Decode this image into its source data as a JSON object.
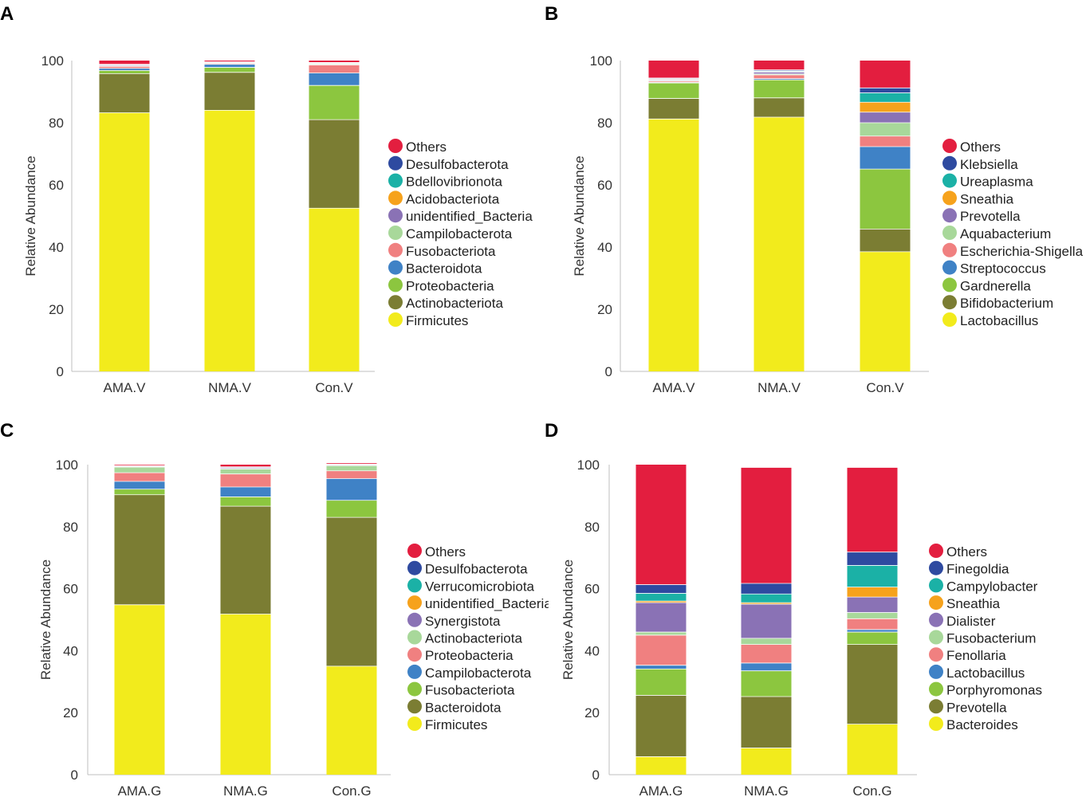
{
  "colors": {
    "others": "#e31e3f",
    "blue_dark": "#2e4aa0",
    "teal": "#1bb1a6",
    "orange": "#f6a21c",
    "purple": "#8a72b5",
    "light_green": "#a8d89a",
    "pink": "#f08080",
    "blue": "#3f82c6",
    "green": "#8cc63f",
    "olive": "#7b7d33",
    "yellow": "#f2eb1c",
    "axis": "#bfbfbf"
  },
  "chart_data": [
    {
      "panel": "A",
      "type": "bar",
      "stacked": true,
      "ylabel": "Relative Abundance",
      "ylim": [
        0,
        100
      ],
      "yticks": [
        "0",
        "20",
        "40",
        "60",
        "80",
        "100"
      ],
      "categories": [
        "AMA.V",
        "NMA.V",
        "Con.V"
      ],
      "series": [
        {
          "name": "Firmicutes",
          "color": "yellow",
          "values": [
            83.2,
            84.0,
            52.5
          ]
        },
        {
          "name": "Actinobacteriota",
          "color": "olive",
          "values": [
            12.6,
            12.2,
            28.5
          ]
        },
        {
          "name": "Proteobacteria",
          "color": "green",
          "values": [
            1.0,
            1.6,
            11.0
          ]
        },
        {
          "name": "Bacteroidota",
          "color": "blue",
          "values": [
            0.7,
            1.0,
            4.0
          ]
        },
        {
          "name": "Fusobacteriota",
          "color": "pink",
          "values": [
            0.6,
            0.3,
            2.6
          ]
        },
        {
          "name": "Campilobacterota",
          "color": "light_green",
          "values": [
            0.2,
            0.1,
            0.3
          ]
        },
        {
          "name": "unidentified_Bacteria",
          "color": "purple",
          "values": [
            0.3,
            0.2,
            0.2
          ]
        },
        {
          "name": "Acidobacteriota",
          "color": "orange",
          "values": [
            0.0,
            0.0,
            0.1
          ]
        },
        {
          "name": "Bdellovibrionota",
          "color": "teal",
          "values": [
            0.1,
            0.1,
            0.1
          ]
        },
        {
          "name": "Desulfobacterota",
          "color": "blue_dark",
          "values": [
            0.1,
            0.1,
            0.1
          ]
        },
        {
          "name": "Others",
          "color": "others",
          "values": [
            1.2,
            0.4,
            0.6
          ]
        }
      ]
    },
    {
      "panel": "B",
      "type": "bar",
      "stacked": true,
      "ylabel": "Relative Abundance",
      "ylim": [
        0,
        100
      ],
      "yticks": [
        "0",
        "20",
        "40",
        "60",
        "80",
        "100"
      ],
      "categories": [
        "AMA.V",
        "NMA.V",
        "Con.V"
      ],
      "series": [
        {
          "name": "Lactobacillus",
          "color": "yellow",
          "values": [
            81.2,
            81.8,
            38.5
          ]
        },
        {
          "name": "Bifidobacterium",
          "color": "olive",
          "values": [
            6.6,
            6.2,
            7.3
          ]
        },
        {
          "name": "Gardnerella",
          "color": "green",
          "values": [
            5.0,
            5.8,
            19.3
          ]
        },
        {
          "name": "Streptococcus",
          "color": "blue",
          "values": [
            0.2,
            0.4,
            7.2
          ]
        },
        {
          "name": "Escherichia-Shigella",
          "color": "pink",
          "values": [
            0.4,
            1.2,
            3.4
          ]
        },
        {
          "name": "Aquabacterium",
          "color": "light_green",
          "values": [
            0.2,
            0.3,
            4.3
          ]
        },
        {
          "name": "Prevotella",
          "color": "purple",
          "values": [
            0.3,
            0.6,
            3.4
          ]
        },
        {
          "name": "Sneathia",
          "color": "orange",
          "values": [
            0.2,
            0.2,
            3.2
          ]
        },
        {
          "name": "Ureaplasma",
          "color": "teal",
          "values": [
            0.1,
            0.2,
            3.0
          ]
        },
        {
          "name": "Klebsiella",
          "color": "blue_dark",
          "values": [
            0.2,
            0.3,
            1.6
          ]
        },
        {
          "name": "Others",
          "color": "others",
          "values": [
            5.6,
            3.0,
            8.8
          ]
        }
      ]
    },
    {
      "panel": "C",
      "type": "bar",
      "stacked": true,
      "ylabel": "Relative Abundance",
      "ylim": [
        0,
        100
      ],
      "yticks": [
        "0",
        "20",
        "40",
        "60",
        "80",
        "100"
      ],
      "categories": [
        "AMA.G",
        "NMA.G",
        "Con.G"
      ],
      "series": [
        {
          "name": "Firmicutes",
          "color": "yellow",
          "values": [
            54.8,
            51.8,
            35.0
          ]
        },
        {
          "name": "Bacteroidota",
          "color": "olive",
          "values": [
            35.5,
            34.8,
            48.0
          ]
        },
        {
          "name": "Fusobacteriota",
          "color": "green",
          "values": [
            1.8,
            3.0,
            5.5
          ]
        },
        {
          "name": "Campilobacterota",
          "color": "blue",
          "values": [
            2.5,
            3.2,
            7.0
          ]
        },
        {
          "name": "Proteobacteria",
          "color": "pink",
          "values": [
            2.8,
            4.2,
            2.5
          ]
        },
        {
          "name": "Actinobacteriota",
          "color": "light_green",
          "values": [
            1.8,
            1.6,
            1.7
          ]
        },
        {
          "name": "Synergistota",
          "color": "purple",
          "values": [
            0.2,
            0.3,
            0.2
          ]
        },
        {
          "name": "unidentified_Bacteria",
          "color": "orange",
          "values": [
            0.1,
            0.1,
            0.1
          ]
        },
        {
          "name": "Verrucomicrobiota",
          "color": "teal",
          "values": [
            0.1,
            0.1,
            0.1
          ]
        },
        {
          "name": "Desulfobacterota",
          "color": "blue_dark",
          "values": [
            0.1,
            0.2,
            0.1
          ]
        },
        {
          "name": "Others",
          "color": "others",
          "values": [
            0.3,
            0.7,
            0.3
          ]
        }
      ]
    },
    {
      "panel": "D",
      "type": "bar",
      "stacked": true,
      "ylabel": "Relative Abundance",
      "ylim": [
        0,
        100
      ],
      "yticks": [
        "0",
        "20",
        "40",
        "60",
        "80",
        "100"
      ],
      "categories": [
        "AMA.G",
        "NMA.G",
        "Con.G"
      ],
      "series": [
        {
          "name": "Bacteroides",
          "color": "yellow",
          "values": [
            5.8,
            8.6,
            16.3
          ]
        },
        {
          "name": "Prevotella",
          "color": "olive",
          "values": [
            19.8,
            16.6,
            25.7
          ]
        },
        {
          "name": "Porphyromonas",
          "color": "green",
          "values": [
            8.5,
            8.3,
            4.0
          ]
        },
        {
          "name": "Lactobacillus",
          "color": "blue",
          "values": [
            1.2,
            2.5,
            0.8
          ]
        },
        {
          "name": "Fenollaria",
          "color": "pink",
          "values": [
            9.7,
            6.0,
            3.5
          ]
        },
        {
          "name": "Fusobacterium",
          "color": "light_green",
          "values": [
            1.0,
            2.0,
            2.0
          ]
        },
        {
          "name": "Dialister",
          "color": "purple",
          "values": [
            9.5,
            11.0,
            5.0
          ]
        },
        {
          "name": "Sneathia",
          "color": "orange",
          "values": [
            0.5,
            0.5,
            3.2
          ]
        },
        {
          "name": "Campylobacter",
          "color": "teal",
          "values": [
            2.5,
            2.8,
            7.0
          ]
        },
        {
          "name": "Finegoldia",
          "color": "blue_dark",
          "values": [
            2.8,
            3.4,
            4.3
          ]
        },
        {
          "name": "Others",
          "color": "others",
          "values": [
            38.7,
            37.3,
            27.2
          ]
        }
      ]
    }
  ]
}
